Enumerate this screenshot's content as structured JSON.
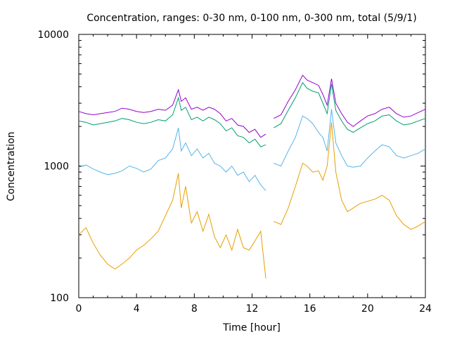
{
  "chart_data": {
    "type": "line",
    "title": "Concentration, ranges: 0-30 nm, 0-100 nm, 0-300 nm, total (5/9/1)",
    "xlabel": "Time [hour]",
    "ylabel": "Concentration",
    "xlim": [
      0,
      24
    ],
    "ylim": [
      100,
      10000
    ],
    "yscale": "log",
    "grid": false,
    "x_ticks": [
      "0",
      "4",
      "8",
      "12",
      "16",
      "20",
      "24"
    ],
    "y_ticks": [
      "100",
      "1000",
      "10000"
    ],
    "colors": {
      "total": "#9400d3",
      "range_300": "#009e73",
      "range_100": "#56b4e9",
      "range_30": "#e69f00"
    },
    "series": [
      {
        "key": "total",
        "x": [
          0,
          0.5,
          1,
          1.5,
          2,
          2.5,
          3,
          3.5,
          4,
          4.5,
          5,
          5.5,
          6,
          6.5,
          6.9,
          7.1,
          7.4,
          7.8,
          8.2,
          8.6,
          9,
          9.4,
          9.8,
          10.2,
          10.6,
          11,
          11.4,
          11.8,
          12.2,
          12.6,
          12.95,
          13.5,
          14,
          14.5,
          15,
          15.5,
          15.8,
          16.2,
          16.6,
          16.9,
          17.2,
          17.5,
          17.8,
          18.2,
          18.6,
          19,
          19.5,
          20,
          20.5,
          21,
          21.5,
          22,
          22.5,
          23,
          23.5,
          24
        ],
        "values": [
          2600,
          2500,
          2450,
          2500,
          2550,
          2600,
          2750,
          2700,
          2600,
          2550,
          2600,
          2700,
          2650,
          2900,
          3800,
          3100,
          3300,
          2700,
          2800,
          2650,
          2800,
          2700,
          2500,
          2200,
          2300,
          2050,
          2000,
          1800,
          1900,
          1650,
          1750,
          2300,
          2450,
          3100,
          3800,
          4900,
          4500,
          4300,
          4100,
          3500,
          2900,
          4600,
          3000,
          2500,
          2150,
          2000,
          2200,
          2400,
          2500,
          2700,
          2800,
          2500,
          2350,
          2400,
          2550,
          2700
        ]
      },
      {
        "key": "range_300",
        "x": [
          0,
          0.5,
          1,
          1.5,
          2,
          2.5,
          3,
          3.5,
          4,
          4.5,
          5,
          5.5,
          6,
          6.5,
          6.9,
          7.1,
          7.4,
          7.8,
          8.2,
          8.6,
          9,
          9.4,
          9.8,
          10.2,
          10.6,
          11,
          11.4,
          11.8,
          12.2,
          12.6,
          12.95,
          13.5,
          14,
          14.5,
          15,
          15.5,
          15.8,
          16.2,
          16.6,
          16.9,
          17.2,
          17.5,
          17.8,
          18.2,
          18.6,
          19,
          19.5,
          20,
          20.5,
          21,
          21.5,
          22,
          22.5,
          23,
          23.5,
          24
        ],
        "values": [
          2200,
          2150,
          2050,
          2100,
          2150,
          2200,
          2300,
          2250,
          2150,
          2100,
          2150,
          2250,
          2200,
          2450,
          3300,
          2650,
          2800,
          2250,
          2350,
          2200,
          2350,
          2250,
          2100,
          1850,
          1950,
          1700,
          1650,
          1500,
          1600,
          1400,
          1450,
          1950,
          2100,
          2650,
          3300,
          4300,
          3900,
          3700,
          3600,
          3000,
          2500,
          4200,
          2650,
          2200,
          1900,
          1800,
          1950,
          2100,
          2200,
          2400,
          2450,
          2200,
          2050,
          2100,
          2200,
          2300
        ]
      },
      {
        "key": "range_100",
        "x": [
          0,
          0.5,
          1,
          1.5,
          2,
          2.5,
          3,
          3.5,
          4,
          4.5,
          5,
          5.5,
          6,
          6.5,
          6.9,
          7.1,
          7.4,
          7.8,
          8.2,
          8.6,
          9,
          9.4,
          9.8,
          10.2,
          10.6,
          11,
          11.4,
          11.8,
          12.2,
          12.6,
          12.95,
          13.5,
          14,
          14.5,
          15,
          15.5,
          15.8,
          16.2,
          16.6,
          16.9,
          17.2,
          17.5,
          17.8,
          18.2,
          18.6,
          19,
          19.5,
          20,
          20.5,
          21,
          21.5,
          22,
          22.5,
          23,
          23.5,
          24
        ],
        "values": [
          980,
          1020,
          950,
          900,
          860,
          880,
          920,
          1000,
          960,
          900,
          950,
          1100,
          1150,
          1350,
          1950,
          1300,
          1500,
          1200,
          1350,
          1150,
          1250,
          1050,
          1000,
          900,
          1000,
          850,
          900,
          760,
          850,
          720,
          650,
          1050,
          1000,
          1300,
          1650,
          2400,
          2300,
          2100,
          1800,
          1650,
          1300,
          2700,
          1500,
          1200,
          1000,
          980,
          1000,
          1150,
          1300,
          1450,
          1400,
          1200,
          1150,
          1200,
          1250,
          1350
        ]
      },
      {
        "key": "range_30",
        "x": [
          0,
          0.5,
          1,
          1.5,
          2,
          2.5,
          3,
          3.5,
          4,
          4.5,
          5,
          5.5,
          6,
          6.5,
          6.9,
          7.1,
          7.4,
          7.8,
          8.2,
          8.6,
          9,
          9.4,
          9.8,
          10.2,
          10.6,
          11,
          11.4,
          11.8,
          12.2,
          12.6,
          12.95,
          13.5,
          14,
          14.5,
          15,
          15.5,
          15.8,
          16.2,
          16.6,
          16.9,
          17.2,
          17.5,
          17.8,
          18.2,
          18.6,
          19,
          19.5,
          20,
          20.5,
          21,
          21.5,
          22,
          22.5,
          23,
          23.5,
          24
        ],
        "values": [
          300,
          340,
          260,
          210,
          180,
          165,
          180,
          200,
          230,
          250,
          280,
          320,
          420,
          550,
          880,
          480,
          700,
          370,
          450,
          320,
          430,
          290,
          240,
          300,
          230,
          330,
          240,
          230,
          270,
          320,
          140,
          380,
          360,
          480,
          700,
          1050,
          1000,
          900,
          920,
          780,
          1000,
          2150,
          900,
          550,
          450,
          480,
          520,
          540,
          560,
          600,
          550,
          420,
          360,
          330,
          350,
          380
        ]
      }
    ]
  }
}
